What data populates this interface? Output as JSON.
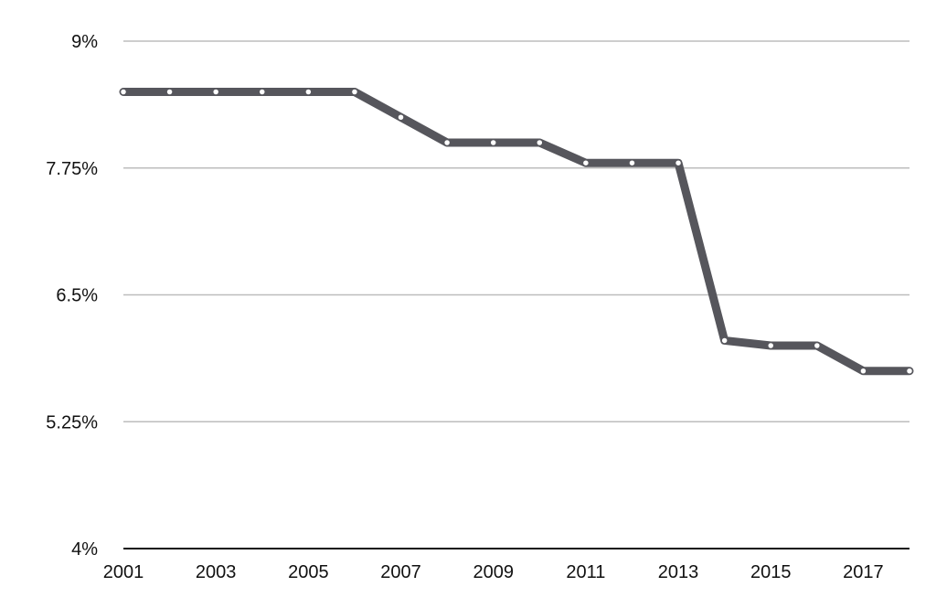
{
  "chart_data": {
    "type": "line",
    "title": "",
    "xlabel": "",
    "ylabel": "",
    "x": [
      2001,
      2002,
      2003,
      2004,
      2005,
      2006,
      2007,
      2008,
      2009,
      2010,
      2011,
      2012,
      2013,
      2014,
      2015,
      2016,
      2017,
      2018
    ],
    "series": [
      {
        "values": [
          8.5,
          8.5,
          8.5,
          8.5,
          8.5,
          8.5,
          8.25,
          8.0,
          8.0,
          8.0,
          7.8,
          7.8,
          7.8,
          6.05,
          6.0,
          6.0,
          5.75,
          5.75
        ]
      }
    ],
    "ylim": [
      4,
      9
    ],
    "y_ticks": [
      4,
      5.25,
      6.5,
      7.75,
      9
    ],
    "y_tick_labels": [
      "4%",
      "5.25%",
      "6.5%",
      "7.75%",
      "9%"
    ],
    "x_ticks": [
      2001,
      2003,
      2005,
      2007,
      2009,
      2011,
      2013,
      2015,
      2017
    ],
    "x_tick_labels": [
      "2001",
      "2003",
      "2005",
      "2007",
      "2009",
      "2011",
      "2013",
      "2015",
      "2017"
    ],
    "grid": "horizontal",
    "legend": "none",
    "colors": {
      "line": "#56565c",
      "marker_fill": "#ffffff",
      "grid": "#bdbdbd",
      "axis": "#111111"
    }
  }
}
